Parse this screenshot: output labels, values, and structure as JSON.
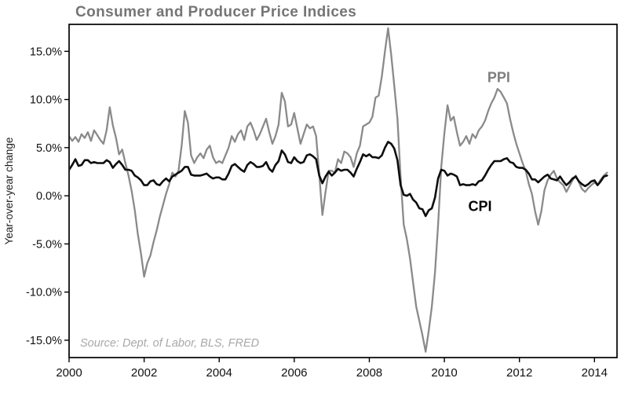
{
  "chart": {
    "title": "Consumer and Producer Price Indices",
    "ylabel": "Year-over-year change",
    "source_note": "Source: Dept. of Labor, BLS, FRED",
    "colors": {
      "ppi_line": "#8a8a8a",
      "cpi_line": "#0d0d0d",
      "title_text": "#757575",
      "source_text": "#a8a8a8",
      "axis": "#000000"
    }
  },
  "chart_data": {
    "type": "line",
    "title": "Consumer and Producer Price Indices",
    "xlabel": "",
    "ylabel": "Year-over-year change",
    "x_unit": "monthly, Jan 2000 through May 2014",
    "x_start_year": 2000,
    "xlim": [
      2000,
      2014.6
    ],
    "ylim": [
      -16.8,
      17.8
    ],
    "grid": false,
    "legend": "inline-annotations",
    "x_ticks": [
      2000,
      2002,
      2004,
      2006,
      2008,
      2010,
      2012,
      2014
    ],
    "x_tick_labels": [
      "2000",
      "2002",
      "2004",
      "2006",
      "2008",
      "2010",
      "2012",
      "2014"
    ],
    "y_ticks": [
      15,
      10,
      5,
      0,
      -5,
      -10,
      -15
    ],
    "y_tick_labels": [
      "15.0%",
      "10.0%",
      "5.0%",
      "0.0%",
      "-5.0%",
      "-10.0%",
      "-15.0%"
    ],
    "annotations": [
      {
        "text": "PPI",
        "x": 2011.45,
        "y": 12.3,
        "color": "#7f7f7f"
      },
      {
        "text": "CPI",
        "x": 2010.95,
        "y": -1.1,
        "color": "#000000"
      }
    ],
    "series": [
      {
        "name": "PPI",
        "color": "#8a8a8a",
        "width": 2.3,
        "values": [
          6.2,
          5.7,
          6.1,
          5.6,
          6.4,
          6.0,
          6.6,
          5.7,
          6.8,
          6.3,
          5.8,
          5.4,
          6.8,
          9.2,
          7.3,
          6.0,
          4.3,
          4.8,
          3.4,
          2.1,
          0.5,
          -1.5,
          -4.0,
          -6.0,
          -8.4,
          -7.0,
          -6.2,
          -4.8,
          -3.6,
          -2.2,
          -1.0,
          0.2,
          1.2,
          2.4,
          2.0,
          2.6,
          5.2,
          8.8,
          7.6,
          4.2,
          3.4,
          4.0,
          4.4,
          3.9,
          4.8,
          5.2,
          4.0,
          3.4,
          3.6,
          3.4,
          4.2,
          5.0,
          6.2,
          5.6,
          6.4,
          6.8,
          5.8,
          7.2,
          7.6,
          6.8,
          5.8,
          6.4,
          7.2,
          8.0,
          6.6,
          5.4,
          6.2,
          7.4,
          10.7,
          9.8,
          7.2,
          7.4,
          8.6,
          7.0,
          5.4,
          6.4,
          7.4,
          7.0,
          7.2,
          6.2,
          2.2,
          -2.0,
          0.4,
          2.6,
          2.6,
          2.4,
          3.8,
          3.4,
          4.6,
          4.4,
          4.0,
          3.0,
          4.4,
          5.2,
          7.2,
          7.4,
          7.6,
          8.2,
          10.2,
          10.4,
          12.4,
          15.0,
          17.4,
          14.6,
          11.4,
          8.0,
          2.0,
          -3.0,
          -4.5,
          -6.5,
          -9.0,
          -11.5,
          -13.0,
          -14.5,
          -16.2,
          -14.0,
          -11.5,
          -8.0,
          -3.0,
          3.0,
          6.5,
          9.4,
          7.8,
          8.2,
          6.6,
          5.2,
          5.6,
          6.2,
          5.4,
          6.4,
          6.0,
          6.8,
          7.2,
          7.8,
          8.8,
          9.6,
          10.2,
          11.1,
          10.8,
          10.2,
          9.6,
          8.0,
          6.6,
          5.4,
          4.4,
          3.4,
          2.6,
          1.2,
          0.2,
          -1.6,
          -3.0,
          -1.6,
          0.6,
          1.6,
          2.2,
          2.6,
          1.8,
          1.4,
          1.1,
          0.4,
          1.0,
          1.6,
          2.1,
          1.4,
          0.7,
          0.4,
          0.8,
          1.1,
          1.4,
          1.1,
          1.7,
          2.1,
          2.4
        ]
      },
      {
        "name": "CPI",
        "color": "#0d0d0d",
        "width": 2.6,
        "values": [
          2.7,
          3.2,
          3.8,
          3.1,
          3.2,
          3.7,
          3.7,
          3.4,
          3.5,
          3.4,
          3.4,
          3.4,
          3.7,
          3.5,
          2.9,
          3.3,
          3.6,
          3.2,
          2.7,
          2.7,
          2.6,
          2.1,
          1.9,
          1.6,
          1.1,
          1.1,
          1.5,
          1.6,
          1.2,
          1.1,
          1.5,
          1.8,
          1.5,
          2.0,
          2.2,
          2.4,
          2.6,
          3.0,
          3.0,
          2.2,
          2.1,
          2.1,
          2.1,
          2.2,
          2.3,
          2.0,
          1.8,
          1.9,
          1.9,
          1.7,
          1.7,
          2.3,
          3.1,
          3.3,
          3.0,
          2.7,
          2.5,
          3.2,
          3.5,
          3.3,
          3.0,
          3.0,
          3.1,
          3.5,
          2.8,
          2.5,
          3.2,
          3.6,
          4.7,
          4.3,
          3.5,
          3.4,
          4.0,
          3.6,
          3.4,
          3.5,
          4.2,
          4.3,
          4.1,
          3.8,
          2.1,
          1.3,
          2.0,
          2.5,
          2.1,
          2.4,
          2.8,
          2.6,
          2.7,
          2.7,
          2.4,
          2.0,
          2.8,
          3.5,
          4.3,
          4.1,
          4.3,
          4.0,
          4.0,
          3.9,
          4.2,
          5.0,
          5.6,
          5.4,
          4.9,
          3.7,
          1.1,
          0.1,
          0.0,
          0.2,
          -0.4,
          -0.7,
          -1.3,
          -1.4,
          -2.1,
          -1.5,
          -1.3,
          -0.2,
          1.8,
          2.7,
          2.6,
          2.1,
          2.3,
          2.2,
          2.0,
          1.1,
          1.2,
          1.1,
          1.1,
          1.2,
          1.1,
          1.5,
          1.6,
          2.1,
          2.7,
          3.2,
          3.6,
          3.6,
          3.6,
          3.8,
          3.9,
          3.5,
          3.4,
          3.0,
          2.9,
          2.9,
          2.7,
          2.3,
          1.7,
          1.7,
          1.4,
          1.7,
          2.0,
          2.2,
          1.8,
          1.7,
          1.6,
          2.0,
          1.5,
          1.1,
          1.4,
          1.8,
          2.0,
          1.5,
          1.2,
          1.0,
          1.2,
          1.5,
          1.6,
          1.1,
          1.5,
          2.0,
          2.1
        ]
      }
    ]
  }
}
